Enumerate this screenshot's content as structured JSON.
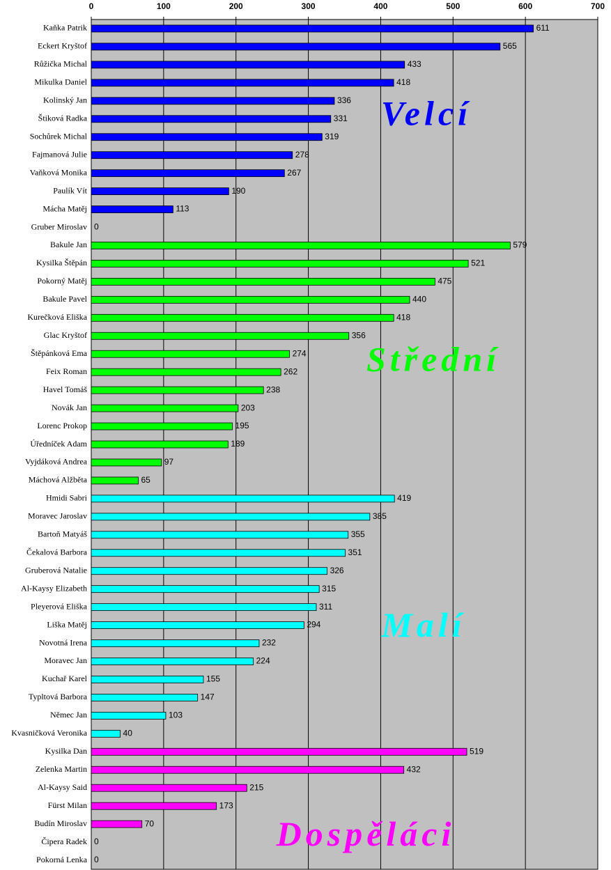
{
  "chart_data": {
    "type": "bar",
    "orientation": "horizontal",
    "xlim": [
      0,
      700
    ],
    "xticks": [
      0,
      100,
      200,
      300,
      400,
      500,
      600,
      700
    ],
    "grid": true,
    "groups": [
      {
        "name": "Velcí",
        "color": "#0000ff",
        "categories": [
          "Kaňka Patrik",
          "Eckert Kryštof",
          "Růžička Michal",
          "Mikulka Daniel",
          "Kolinský Jan",
          "Štiková Radka",
          "Sochůrek Michal",
          "Fajmanová Julie",
          "Vaňková Monika",
          "Paulík Vít",
          "Mácha Matěj",
          "Gruber Miroslav"
        ],
        "values": [
          611,
          565,
          433,
          418,
          336,
          331,
          319,
          278,
          267,
          190,
          113,
          0
        ]
      },
      {
        "name": "Střední",
        "color": "#00ff00",
        "categories": [
          "Bakule Jan",
          "Kysilka Štěpán",
          "Pokorný Matěj",
          "Bakule Pavel",
          "Kurečková Eliška",
          "Glac Kryštof",
          "Štěpánková Ema",
          "Feix Roman",
          "Havel Tomáš",
          "Novák Jan",
          "Lorenc Prokop",
          "Úředníček Adam",
          "Vyjdáková Andrea",
          "Máchová Alžběta"
        ],
        "values": [
          579,
          521,
          475,
          440,
          418,
          356,
          274,
          262,
          238,
          203,
          195,
          189,
          97,
          65
        ]
      },
      {
        "name": "Malí",
        "color": "#00ffff",
        "categories": [
          "Hmidi Sabri",
          "Moravec Jaroslav",
          "Bartoň Matyáš",
          "Čekalová Barbora",
          "Gruberová Natalie",
          "Al-Kaysy Elizabeth",
          "Pleyerová Eliška",
          "Liška Matěj",
          "Novotná Irena",
          "Moravec Jan",
          "Kuchař Karel",
          "Typltová Barbora",
          "Němec Jan",
          "Kvasničková Veronika"
        ],
        "values": [
          419,
          385,
          355,
          351,
          326,
          315,
          311,
          294,
          232,
          224,
          155,
          147,
          103,
          40
        ]
      },
      {
        "name": "Dospěláci",
        "color": "#ff00ff",
        "categories": [
          "Kysilka Dan",
          "Zelenka Martin",
          "Al-Kaysy Said",
          "Fürst Milan",
          "Budín Miroslav",
          "Čipera Radek",
          "Pokorná Lenka"
        ],
        "values": [
          519,
          432,
          215,
          173,
          70,
          0,
          0
        ]
      }
    ]
  }
}
